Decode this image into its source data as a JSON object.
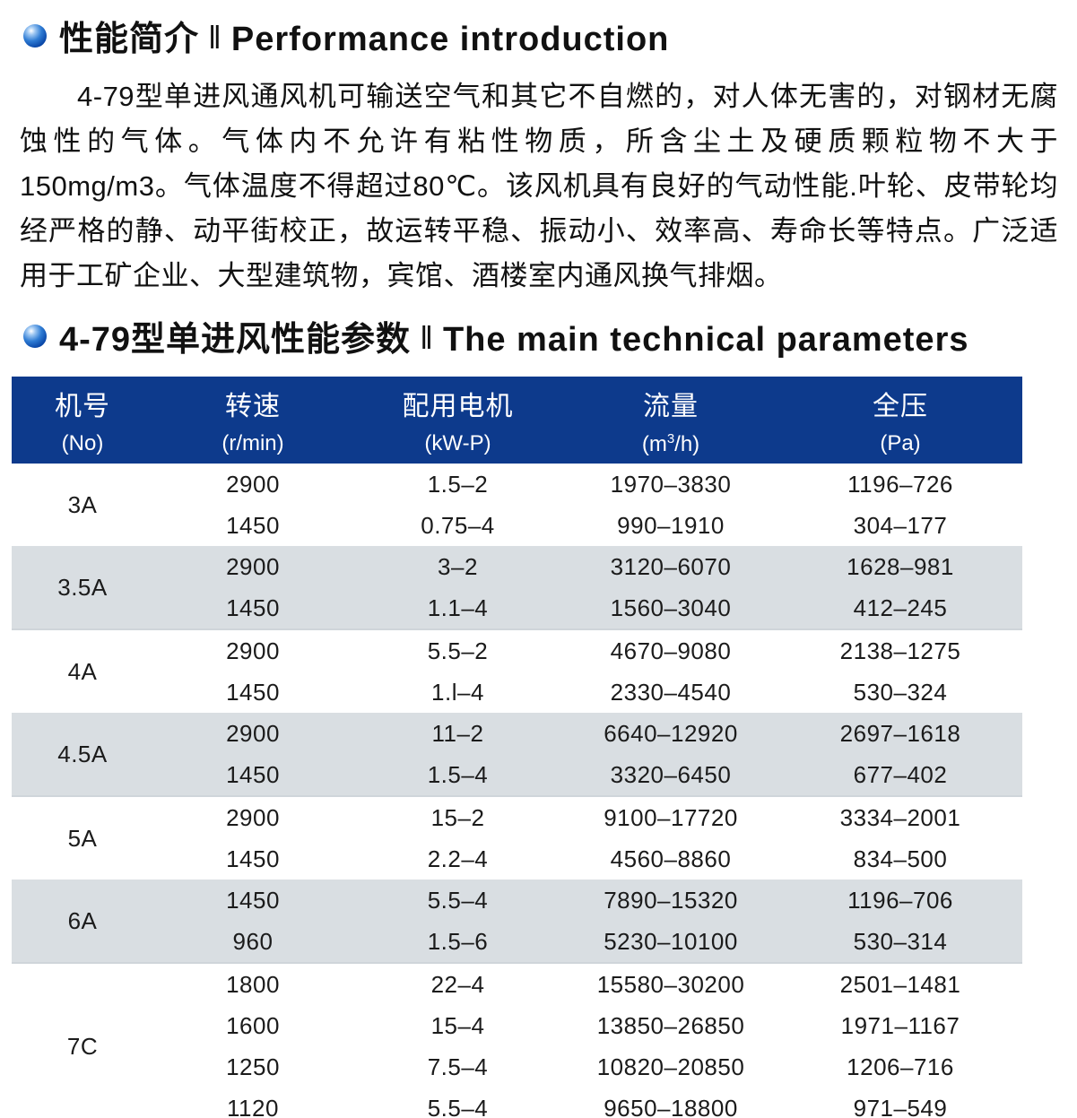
{
  "page": {
    "section1": {
      "title_zh": "性能简介",
      "separator": "‖",
      "title_en": "Performance  introduction"
    },
    "intro_paragraph": "4-79型单进风通风机可输送空气和其它不自燃的，对人体无害的，对钢材无腐蚀性的气体。气体内不允许有粘性物质，所含尘土及硬质颗粒物不大于150mg/m3。气体温度不得超过80℃。该风机具有良好的气动性能.叶轮、皮带轮均经严格的静、动平街校正，故运转平稳、振动小、效率高、寿命长等特点。广泛适用于工矿企业、大型建筑物，宾馆、酒楼室内通风换气排烟。",
    "section2": {
      "title_zh": "4-79型单进风性能参数",
      "separator": "‖",
      "title_en": "The main technical parameters"
    }
  },
  "colors": {
    "header_bg": "#0d3a8c",
    "row_alt_bg": "#d9dee2",
    "bottom_strip_bg": "#dde3e8",
    "bullet_blue": "#0a47a8"
  },
  "table": {
    "headers": [
      {
        "zh": "机号",
        "en": "(No)"
      },
      {
        "zh": "转速",
        "en": "(r/min)"
      },
      {
        "zh": "配用电机",
        "en": "(kW-P)"
      },
      {
        "zh": "流量",
        "en_prefix": "(m",
        "en_sup": "3",
        "en_suffix": "/h)"
      },
      {
        "zh": "全压",
        "en": "(Pa)"
      }
    ],
    "groups": [
      {
        "no": "3A",
        "rows": [
          [
            "2900",
            "1.5–2",
            "1970–3830",
            "1196–726"
          ],
          [
            "1450",
            "0.75–4",
            "990–1910",
            "304–177"
          ]
        ]
      },
      {
        "no": "3.5A",
        "rows": [
          [
            "2900",
            "3–2",
            "3120–6070",
            "1628–981"
          ],
          [
            "1450",
            "1.1–4",
            "1560–3040",
            "412–245"
          ]
        ]
      },
      {
        "no": "4A",
        "rows": [
          [
            "2900",
            "5.5–2",
            "4670–9080",
            "2138–1275"
          ],
          [
            "1450",
            "1.l–4",
            "2330–4540",
            "530–324"
          ]
        ]
      },
      {
        "no": "4.5A",
        "rows": [
          [
            "2900",
            "11–2",
            "6640–12920",
            "2697–1618"
          ],
          [
            "1450",
            "1.5–4",
            "3320–6450",
            "677–402"
          ]
        ]
      },
      {
        "no": "5A",
        "rows": [
          [
            "2900",
            "15–2",
            "9100–17720",
            "3334–2001"
          ],
          [
            "1450",
            "2.2–4",
            "4560–8860",
            "834–500"
          ]
        ]
      },
      {
        "no": "6A",
        "rows": [
          [
            "1450",
            "5.5–4",
            "7890–15320",
            "1196–706"
          ],
          [
            "960",
            "1.5–6",
            "5230–10100",
            "530–314"
          ]
        ]
      },
      {
        "no": "7C",
        "rows": [
          [
            "1800",
            "22–4",
            "15580–30200",
            "2501–1481"
          ],
          [
            "1600",
            "15–4",
            "13850–26850",
            "1971–1167"
          ],
          [
            "1250",
            "7.5–4",
            "10820–20850",
            "1206–716"
          ],
          [
            "1120",
            "5.5–4",
            "9650–18800",
            "971–549"
          ]
        ]
      }
    ]
  }
}
